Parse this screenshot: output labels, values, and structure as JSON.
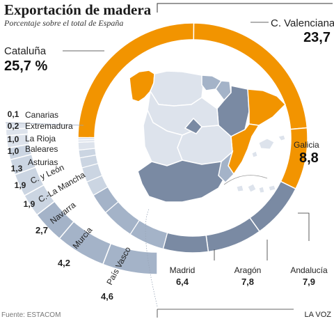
{
  "header": {
    "title": "Exportación de madera",
    "subtitle": "Porcentaje sobre el total de España"
  },
  "footer": {
    "source": "Fuente: ESTACOM",
    "brand": "LA VOZ"
  },
  "colors": {
    "highlight": "#f29400",
    "dark": "#7a8aa3",
    "medium": "#a4b3c8",
    "light": "#cbd5e2",
    "pale": "#dde3ec"
  },
  "chart_data": {
    "type": "pie",
    "title": "Exportación de madera",
    "subtitle": "Porcentaje sobre el total de España",
    "unit": "",
    "slices": [
      {
        "name": "Cataluña",
        "value": 25.7,
        "label": "25,7 %"
      },
      {
        "name": "C. Valenciana",
        "value": 23.7,
        "label": "23,7"
      },
      {
        "name": "Galicia",
        "value": 8.8,
        "label": "8,8"
      },
      {
        "name": "Andalucía",
        "value": 7.9,
        "label": "7,9"
      },
      {
        "name": "Aragón",
        "value": 7.8,
        "label": "7,8"
      },
      {
        "name": "Madrid",
        "value": 6.4,
        "label": "6,4"
      },
      {
        "name": "País Vasco",
        "value": 4.6,
        "label": "4,6"
      },
      {
        "name": "Murcia",
        "value": 4.2,
        "label": "4,2"
      },
      {
        "name": "Navarra",
        "value": 2.7,
        "label": "2,7"
      },
      {
        "name": "C.-La Mancha",
        "value": 1.9,
        "label": "1,9"
      },
      {
        "name": "C. y León",
        "value": 1.9,
        "label": "1,9"
      },
      {
        "name": "Asturias",
        "value": 1.3,
        "label": "1,3"
      },
      {
        "name": "Baleares",
        "value": 1.0,
        "label": "1,0"
      },
      {
        "name": "La Rioja",
        "value": 1.0,
        "label": "1,0"
      },
      {
        "name": "Extremadura",
        "value": 0.2,
        "label": "0,2"
      },
      {
        "name": "Canarias",
        "value": 0.1,
        "label": "0,1"
      }
    ]
  }
}
